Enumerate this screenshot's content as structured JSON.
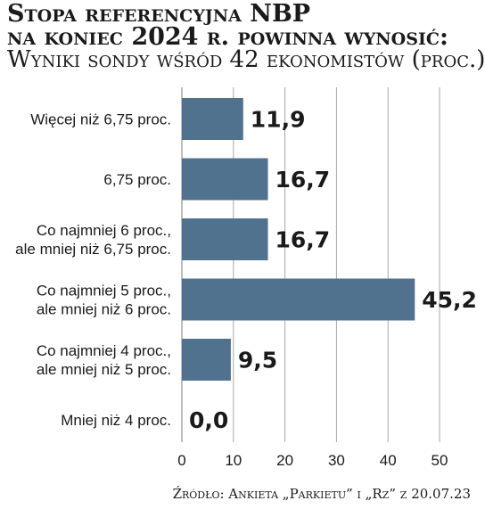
{
  "chart_data": {
    "type": "bar",
    "orientation": "horizontal",
    "title_lines": [
      "Stopa referencyjna NBP",
      "na koniec 2024 r. powinna wynosić:"
    ],
    "subtitle": "Wyniki sondy wśród 42 ekonomistów (proc.)",
    "categories": [
      [
        "Więcej niż 6,75 proc."
      ],
      [
        "6,75 proc."
      ],
      [
        "Co najmniej 6 proc.,",
        "ale mniej niż 6,75 proc."
      ],
      [
        "Co najmniej 5 proc.,",
        "ale mniej niż 6 proc."
      ],
      [
        "Co najmniej 4 proc.,",
        "ale mniej niż 5 proc."
      ],
      [
        "Mniej niż 4 proc."
      ]
    ],
    "values": [
      11.9,
      16.7,
      16.7,
      45.2,
      9.5,
      0.0
    ],
    "value_labels": [
      "11,9",
      "16,7",
      "16,7",
      "45,2",
      "9,5",
      "0,0"
    ],
    "xlim": [
      0,
      50
    ],
    "xticks": [
      "0",
      "10",
      "20",
      "30",
      "40",
      "50"
    ],
    "xlabel": "",
    "ylabel": "",
    "grid": true,
    "legend": "none",
    "colors": {
      "bar": "#51728e",
      "grid": "#a8a8a8",
      "text": "#1a1a1a"
    },
    "source": "Źródło: Ankieta „Parkietu” i „Rz” z 20.07.23"
  }
}
